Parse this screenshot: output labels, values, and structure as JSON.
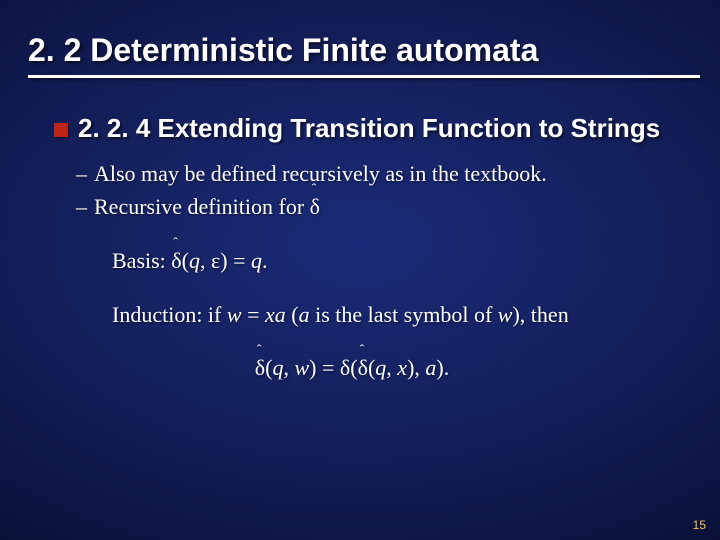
{
  "title": "2. 2 Deterministic Finite automata",
  "section": "2. 2. 4 Extending Transition Function to Strings",
  "points": {
    "p1": "Also may be defined recursively as in the textbook.",
    "p2_prefix": "Recursive definition for "
  },
  "basis": {
    "label": "Basis: ",
    "expr_open": "(",
    "q": "q",
    "comma": ", ",
    "eps": "ε",
    "expr_close": ") = ",
    "rhs": "q",
    "period": "."
  },
  "induction": {
    "prefix": "Induction: if ",
    "w": "w",
    "eq": " = ",
    "xa": "xa",
    "paren_open": " (",
    "a": "a",
    "mid": " is the last symbol of ",
    "w2": "w",
    "paren_close": "), then"
  },
  "formula": {
    "open": "(",
    "q1": "q",
    "c1": ", ",
    "w": "w",
    "close_eq": ") = ",
    "delta": "δ",
    "open2": "(",
    "open3": "(",
    "q2": "q",
    "c2": ", ",
    "x": "x",
    "close2": "), ",
    "a": "a",
    "close3": ")."
  },
  "page": "15"
}
